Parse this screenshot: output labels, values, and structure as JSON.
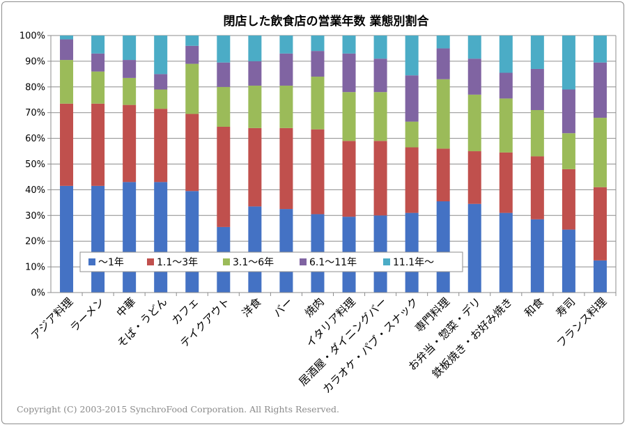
{
  "chart_data": {
    "type": "bar",
    "stacked": true,
    "title": "閉店した飲食店の営業年数 業態別割合",
    "xlabel": "",
    "ylabel": "",
    "ylim": [
      0,
      100
    ],
    "yticks": [
      0,
      10,
      20,
      30,
      40,
      50,
      60,
      70,
      80,
      90,
      100
    ],
    "ytick_suffix": "%",
    "grid": true,
    "legend_position": "inside-bottom-left",
    "categories": [
      "アジア料理",
      "ラーメン",
      "中華",
      "そば・うどん",
      "カフェ",
      "テイクアウト",
      "洋食",
      "バー",
      "焼肉",
      "イタリア料理",
      "居酒屋・ダイニングバー",
      "カラオケ・パブ・スナック",
      "専門料理",
      "お弁当・惣菜・デリ",
      "鉄板焼き・お好み焼き",
      "和食",
      "寿司",
      "フランス料理"
    ],
    "series": [
      {
        "name": "〜1年",
        "color": "#4472c4",
        "values": [
          41.5,
          41.5,
          43,
          43,
          39.5,
          25.5,
          33.5,
          32.5,
          30.5,
          29.5,
          30,
          31,
          35.5,
          34.5,
          31,
          28.5,
          24.5,
          12.5
        ]
      },
      {
        "name": "1.1〜3年",
        "color": "#c0504d",
        "values": [
          32,
          32,
          30,
          28.5,
          30,
          39,
          30.5,
          31.5,
          33,
          29.5,
          29,
          25.5,
          20.5,
          20.5,
          23.5,
          24.5,
          23.5,
          28.5
        ]
      },
      {
        "name": "3.1〜6年",
        "color": "#9bbb59",
        "values": [
          17,
          12.5,
          10.5,
          7.5,
          19.5,
          15.5,
          16.5,
          16.5,
          20.5,
          19,
          19,
          10,
          27,
          22,
          21,
          18,
          14,
          27
        ]
      },
      {
        "name": "6.1〜11年",
        "color": "#8064a2",
        "values": [
          8,
          7,
          7,
          6,
          7,
          9.5,
          9.5,
          12.5,
          10,
          15,
          13,
          18,
          12,
          14,
          10,
          16,
          17,
          21.5
        ]
      },
      {
        "name": "11.1年〜",
        "color": "#4bacc6",
        "values": [
          1.5,
          7,
          9.5,
          15,
          4,
          10.5,
          10,
          7,
          6,
          7,
          9,
          15.5,
          5,
          9,
          14.5,
          13,
          21,
          10.5
        ]
      }
    ]
  },
  "copyright": "Copyright (C) 2003-2015 SynchroFood Corporation. All Rights Reserved."
}
